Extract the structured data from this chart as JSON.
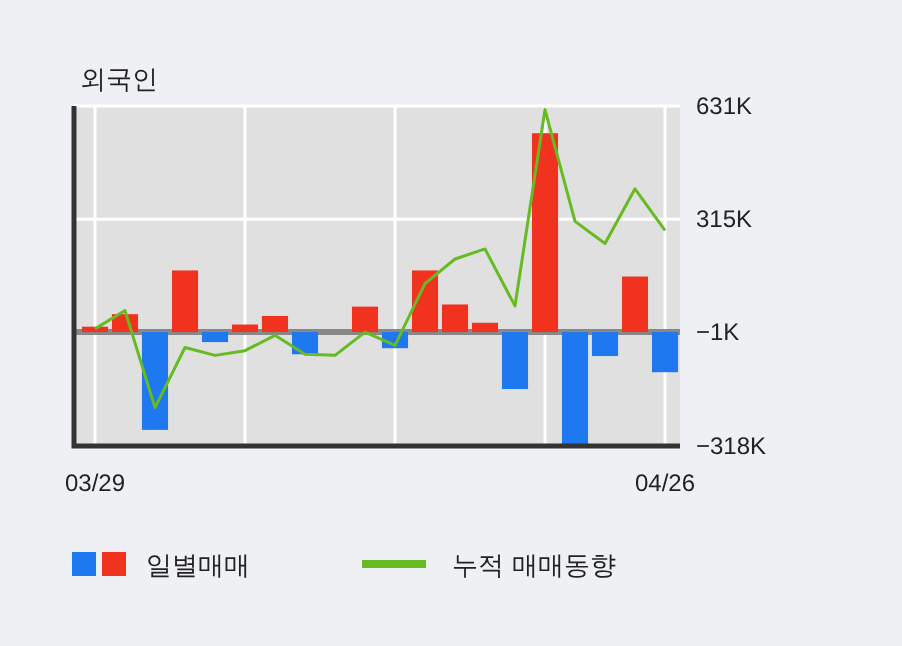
{
  "chart_data": {
    "type": "bar",
    "title": "외국인",
    "categories": [
      "03/29",
      null,
      null,
      null,
      null,
      null,
      null,
      null,
      null,
      null,
      null,
      null,
      null,
      null,
      null,
      null,
      null,
      null,
      null,
      "04/26"
    ],
    "series": [
      {
        "name": "일별매매",
        "colors": [
          "#f0321e",
          "#f0321e",
          "#1e78f0",
          "#f0321e",
          "#1e78f0",
          "#f0321e",
          "#f0321e",
          "#1e78f0",
          "#f0321e",
          "#f0321e",
          "#1e78f0",
          "#f0321e",
          "#f0321e",
          "#f0321e",
          "#1e78f0",
          "#f0321e",
          "#1e78f0",
          "#1e78f0",
          "#f0321e",
          "#1e78f0"
        ],
        "values": [
          15,
          50,
          -273,
          172,
          -28,
          21,
          45,
          -62,
          0,
          71,
          -45,
          172,
          77,
          26,
          -159,
          555,
          -314,
          -67,
          155,
          -112
        ]
      },
      {
        "name": "누적 매매동향",
        "type": "line",
        "color": "#66bb22",
        "values": [
          9,
          60,
          -211,
          -43,
          -65,
          -52,
          -9,
          -62,
          -65,
          0,
          -37,
          135,
          204,
          232,
          73,
          621,
          309,
          247,
          400,
          284
        ]
      }
    ],
    "ylim": [
      -318,
      631
    ],
    "yticks": [
      {
        "value": 631,
        "label": "631K"
      },
      {
        "value": 315,
        "label": "315K"
      },
      {
        "value": -1,
        "label": "−1K"
      },
      {
        "value": -318,
        "label": "−318K"
      }
    ],
    "ref_lines": [
      {
        "axis": "y",
        "value": 0,
        "color": "#888888"
      }
    ],
    "grid": true,
    "legend": "bottom"
  }
}
